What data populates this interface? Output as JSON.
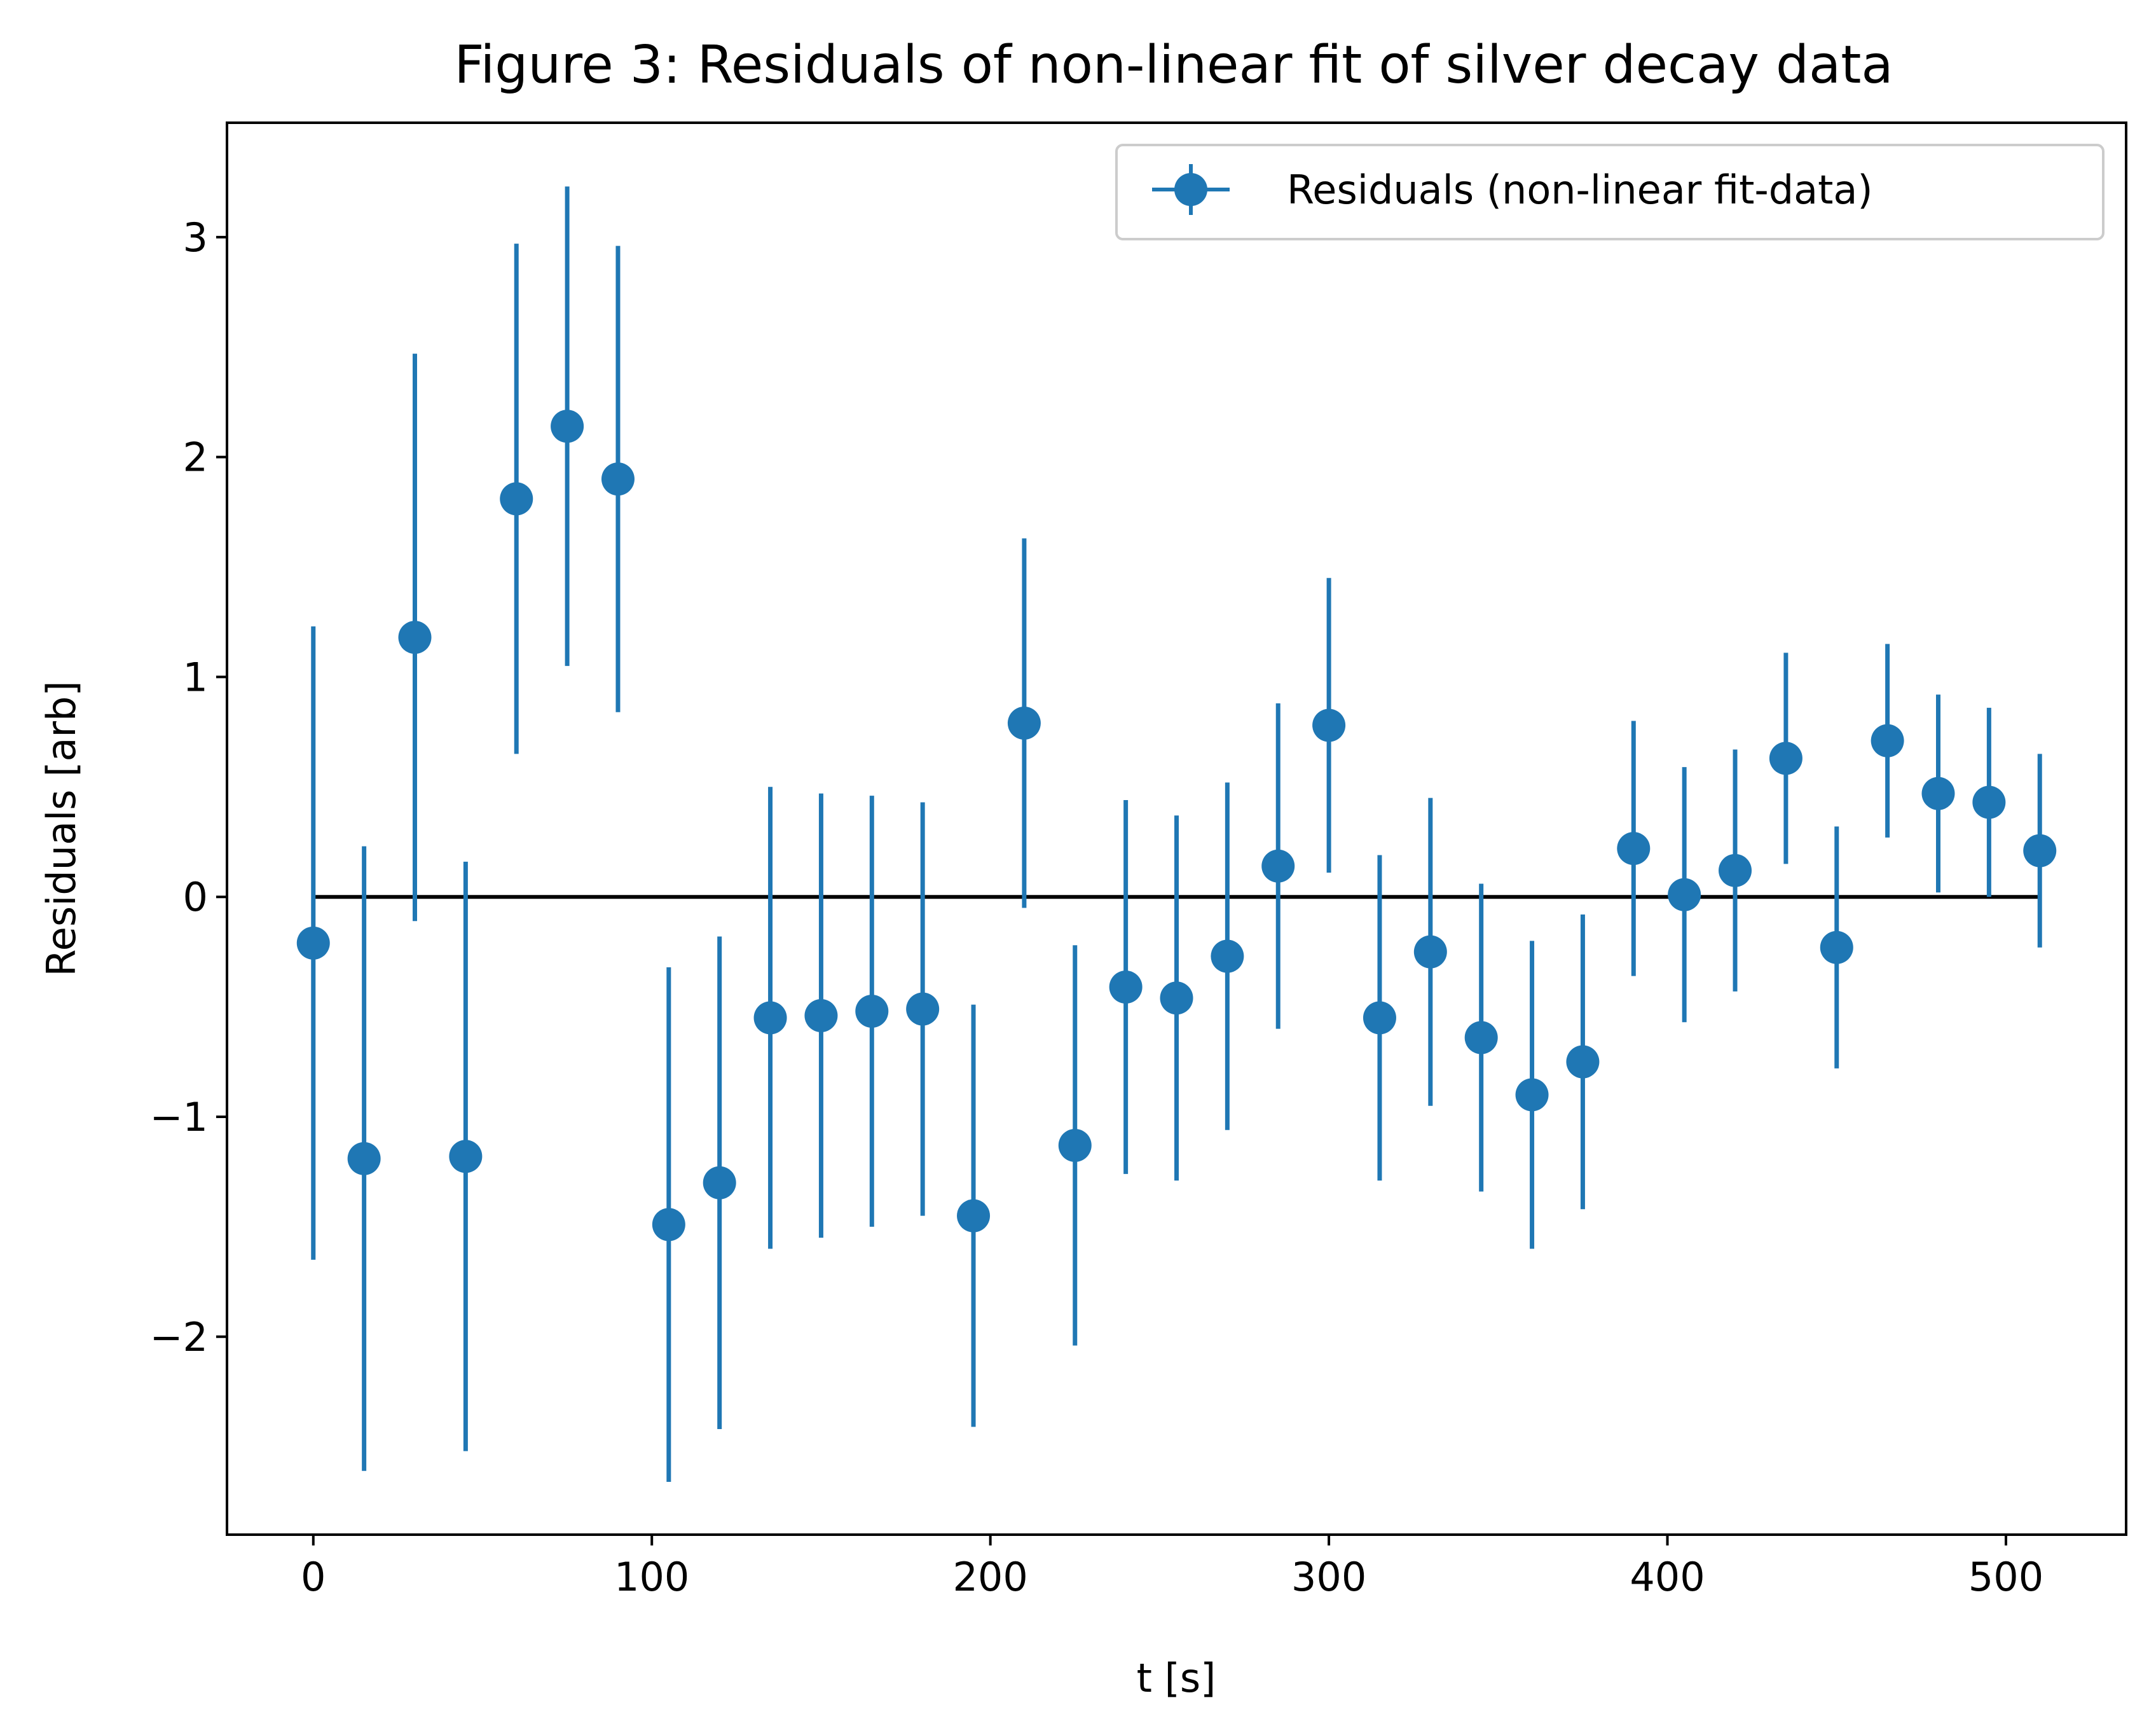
{
  "chart_data": {
    "type": "scatter",
    "title": "Figure 3: Residuals of non-linear fit of silver decay data",
    "xlabel": "t [s]",
    "ylabel": "Residuals [arb]",
    "xlim": [
      -25.5,
      535.5
    ],
    "ylim": [
      -2.9,
      3.52
    ],
    "xticks": [
      0,
      100,
      200,
      300,
      400,
      500
    ],
    "yticks": [
      -2,
      -1,
      0,
      1,
      2,
      3
    ],
    "xtick_labels": [
      "0",
      "100",
      "200",
      "300",
      "400",
      "500"
    ],
    "ytick_labels": [
      "−2",
      "−1",
      "0",
      "1",
      "2",
      "3"
    ],
    "grid": false,
    "legend_position": "top-right",
    "series": [
      {
        "name": "Residuals (non-linear fit-data)",
        "color": "#1f77b4",
        "marker": "circle",
        "x": [
          0,
          15,
          30,
          45,
          60,
          75,
          90,
          105,
          120,
          135,
          150,
          165,
          180,
          195,
          210,
          225,
          240,
          255,
          270,
          285,
          300,
          315,
          330,
          345,
          360,
          375,
          390,
          405,
          420,
          435,
          450,
          465,
          480,
          495,
          510
        ],
        "y": [
          -0.21,
          -1.19,
          1.18,
          -1.18,
          1.81,
          2.14,
          1.9,
          -1.49,
          -1.3,
          -0.55,
          -0.54,
          -0.52,
          -0.51,
          -1.45,
          0.79,
          -1.13,
          -0.41,
          -0.46,
          -0.27,
          0.14,
          0.78,
          -0.55,
          -0.25,
          -0.64,
          -0.9,
          -0.75,
          0.22,
          0.01,
          0.12,
          0.63,
          -0.23,
          0.71,
          0.47,
          0.43,
          0.21
        ],
        "yerr": [
          1.44,
          1.42,
          1.29,
          1.34,
          1.16,
          1.09,
          1.06,
          1.17,
          1.12,
          1.05,
          1.01,
          0.98,
          0.94,
          0.96,
          0.84,
          0.91,
          0.85,
          0.83,
          0.79,
          0.74,
          0.67,
          0.74,
          0.7,
          0.7,
          0.7,
          0.67,
          0.58,
          0.58,
          0.55,
          0.48,
          0.55,
          0.44,
          0.45,
          0.43,
          0.44
        ]
      }
    ],
    "reference_line": {
      "y": 0,
      "x_range": [
        0,
        510
      ],
      "color": "#000000"
    }
  }
}
